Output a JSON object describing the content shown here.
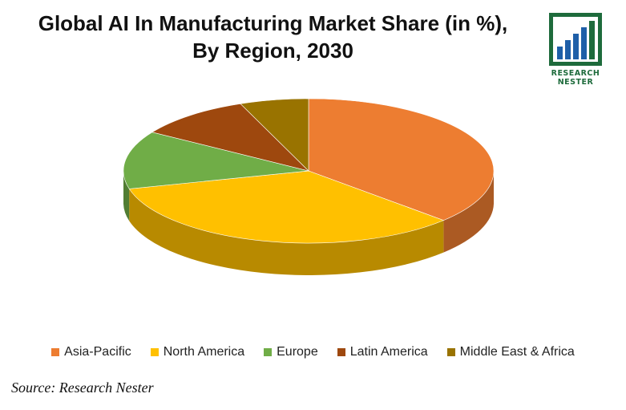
{
  "chart_data": {
    "type": "pie",
    "title": "Global AI In Manufacturing Market Share (in %),",
    "subtitle": "By Region, 2030",
    "categories": [
      "Asia-Pacific",
      "North America",
      "Europe",
      "Latin America",
      "Middle East & Africa"
    ],
    "values": [
      37,
      34,
      13,
      10,
      6
    ],
    "colors": [
      "#ED7D31",
      "#FFC000",
      "#70AD47",
      "#9E480E",
      "#997300"
    ],
    "legend_position": "bottom"
  },
  "logo": {
    "line1": "RESEARCH",
    "line2": "NESTER",
    "color": "#1e6b3c"
  },
  "source": "Source: Research Nester"
}
